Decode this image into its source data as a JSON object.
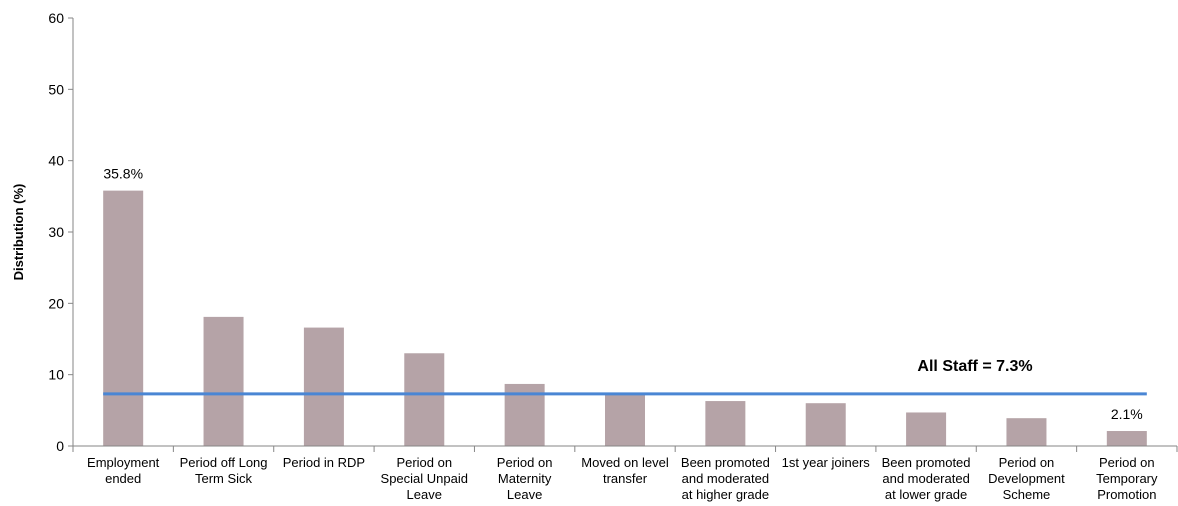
{
  "chart_data": {
    "type": "bar",
    "ylabel": "Distribution (%)",
    "ylim": [
      0,
      60
    ],
    "yticks": [
      0,
      10,
      20,
      30,
      40,
      50,
      60
    ],
    "grid": false,
    "categories": [
      [
        "Employment",
        "ended"
      ],
      [
        "Period off Long",
        "Term Sick"
      ],
      [
        "Period in RDP"
      ],
      [
        "Period on",
        "Special Unpaid",
        "Leave"
      ],
      [
        "Period on",
        "Maternity",
        "Leave"
      ],
      [
        "Moved on level",
        "transfer"
      ],
      [
        "Been promoted",
        "and moderated",
        "at higher grade"
      ],
      [
        "1st year joiners"
      ],
      [
        "Been promoted",
        "and moderated",
        "at lower grade"
      ],
      [
        "Period on",
        "Development",
        "Scheme"
      ],
      [
        "Period on",
        "Temporary",
        "Promotion"
      ]
    ],
    "values": [
      35.8,
      18.1,
      16.6,
      13.0,
      8.7,
      7.4,
      6.3,
      6.0,
      4.7,
      3.9,
      2.1
    ],
    "data_labels": [
      {
        "index": 0,
        "text": "35.8%"
      },
      {
        "index": 10,
        "text": "2.1%"
      }
    ],
    "reference_line": {
      "value": 7.3,
      "label": "All Staff = 7.3%"
    },
    "colors": {
      "bar": "#b5a3a7",
      "reference_line": "#4a86d4",
      "axis": "#868686"
    }
  }
}
